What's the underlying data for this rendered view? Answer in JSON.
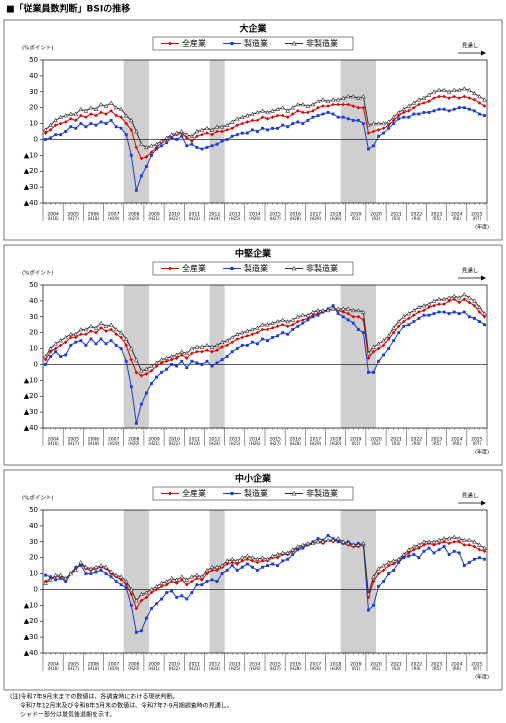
{
  "page_title": "■「従業員数判断」BSIの推移",
  "notes": [
    "(注)令和7年9月末までの数値は、各調査時における現状判断。",
    "令和7年12月末及び令和8年3月末の数値は、令和7年7-9月期調査時の見通し。",
    "シャドー部分は景気後退期を示す。"
  ],
  "chart_data": [
    {
      "type": "line",
      "title": "大企業",
      "y_label": "(%ポイント)",
      "forecast_label": "見通し",
      "x_unit": "(年度)",
      "years": [
        "2004",
        "2005",
        "2006",
        "2007",
        "2008",
        "2009",
        "2010",
        "2011",
        "2012",
        "2013",
        "2014",
        "2015",
        "2016",
        "2017",
        "2018",
        "2019",
        "2020",
        "2021",
        "2022",
        "2023",
        "2024",
        "2025"
      ],
      "eras": [
        "(H16)",
        "(H17)",
        "(H18)",
        "(H19)",
        "(H20)",
        "(H21)",
        "(H22)",
        "(H23)",
        "(H24)",
        "(H25)",
        "(H26)",
        "(H27)",
        "(H28)",
        "(H29)",
        "(H30)",
        "(R1)",
        "(R2)",
        "(R3)",
        "(R4)",
        "(R5)",
        "(R6)",
        "(R7)"
      ],
      "shaded": [
        [
          16,
          20
        ],
        [
          33,
          35
        ],
        [
          59,
          65
        ]
      ],
      "ylim": [
        -40,
        50
      ],
      "yticks": [
        50,
        40,
        30,
        20,
        10,
        0,
        {
          "value": -10,
          "label": "▲10"
        },
        {
          "value": -20,
          "label": "▲20"
        },
        {
          "value": -30,
          "label": "▲30"
        },
        {
          "value": -40,
          "label": "▲40"
        }
      ],
      "grid": false,
      "series": [
        {
          "name": "全産業",
          "color": "#e00000",
          "marker": "diamond",
          "values": [
            4,
            6,
            9,
            10,
            11,
            13,
            12,
            15,
            14,
            16,
            15,
            17,
            16,
            18,
            15,
            14,
            10,
            6,
            -5,
            -12,
            -11,
            -8,
            -5,
            -2,
            0,
            2,
            3,
            4,
            1,
            -1,
            2,
            3,
            4,
            3,
            5,
            5,
            6,
            7,
            9,
            10,
            11,
            12,
            12,
            14,
            13,
            14,
            15,
            15,
            14,
            16,
            18,
            17,
            17,
            18,
            20,
            21,
            21,
            22,
            22,
            22,
            22,
            21,
            20,
            20,
            4,
            5,
            6,
            7,
            9,
            12,
            15,
            17,
            18,
            20,
            22,
            23,
            24,
            26,
            27,
            27,
            26,
            27,
            26,
            27,
            26,
            25,
            23,
            21
          ]
        },
        {
          "name": "製造業",
          "color": "#1a3cd8",
          "marker": "square",
          "values": [
            0,
            1,
            3,
            3,
            5,
            8,
            7,
            10,
            8,
            10,
            9,
            11,
            10,
            12,
            8,
            7,
            3,
            -10,
            -32,
            -23,
            -17,
            -10,
            -6,
            -4,
            -2,
            1,
            0,
            2,
            -4,
            -3,
            -5,
            -6,
            -5,
            -4,
            -3,
            -1,
            0,
            2,
            3,
            4,
            4,
            6,
            5,
            7,
            6,
            7,
            7,
            9,
            8,
            10,
            11,
            10,
            12,
            14,
            15,
            16,
            17,
            16,
            14,
            14,
            13,
            12,
            12,
            10,
            -6,
            -4,
            2,
            4,
            7,
            10,
            13,
            14,
            14,
            16,
            16,
            17,
            17,
            18,
            19,
            19,
            18,
            19,
            20,
            20,
            19,
            18,
            16,
            15
          ]
        },
        {
          "name": "非製造業",
          "color": "#333333",
          "marker": "triangle",
          "values": [
            6,
            9,
            12,
            14,
            15,
            16,
            16,
            19,
            18,
            20,
            19,
            22,
            21,
            23,
            20,
            19,
            15,
            12,
            5,
            -3,
            -5,
            -4,
            -3,
            -1,
            1,
            3,
            4,
            5,
            3,
            2,
            5,
            6,
            7,
            6,
            8,
            8,
            9,
            11,
            13,
            14,
            15,
            16,
            17,
            18,
            17,
            18,
            19,
            20,
            18,
            20,
            22,
            22,
            21,
            22,
            24,
            25,
            24,
            25,
            25,
            26,
            27,
            27,
            26,
            27,
            9,
            10,
            10,
            10,
            11,
            14,
            17,
            19,
            21,
            23,
            25,
            26,
            28,
            30,
            31,
            31,
            30,
            31,
            31,
            32,
            31,
            29,
            27,
            25
          ]
        }
      ]
    },
    {
      "type": "line",
      "title": "中堅企業",
      "y_label": "(%ポイント)",
      "forecast_label": "見通し",
      "x_unit": "(年度)",
      "years": [
        "2004",
        "2005",
        "2006",
        "2007",
        "2008",
        "2009",
        "2010",
        "2011",
        "2012",
        "2013",
        "2014",
        "2015",
        "2016",
        "2017",
        "2018",
        "2019",
        "2020",
        "2021",
        "2022",
        "2023",
        "2024",
        "2025"
      ],
      "eras": [
        "(H16)",
        "(H17)",
        "(H18)",
        "(H19)",
        "(H20)",
        "(H21)",
        "(H22)",
        "(H23)",
        "(H24)",
        "(H25)",
        "(H26)",
        "(H27)",
        "(H28)",
        "(H29)",
        "(H30)",
        "(R1)",
        "(R2)",
        "(R3)",
        "(R4)",
        "(R5)",
        "(R6)",
        "(R7)"
      ],
      "shaded": [
        [
          16,
          20
        ],
        [
          33,
          35
        ],
        [
          59,
          65
        ]
      ],
      "ylim": [
        -40,
        50
      ],
      "yticks": [
        50,
        40,
        30,
        20,
        10,
        0,
        {
          "value": -10,
          "label": "▲10"
        },
        {
          "value": -20,
          "label": "▲20"
        },
        {
          "value": -30,
          "label": "▲30"
        },
        {
          "value": -40,
          "label": "▲40"
        }
      ],
      "grid": false,
      "series": [
        {
          "name": "全産業",
          "color": "#e00000",
          "marker": "diamond",
          "values": [
            3,
            8,
            10,
            12,
            14,
            17,
            17,
            19,
            19,
            21,
            20,
            23,
            21,
            22,
            19,
            17,
            12,
            3,
            -5,
            -7,
            -6,
            -4,
            -1,
            1,
            2,
            3,
            4,
            6,
            4,
            7,
            8,
            8,
            9,
            8,
            9,
            11,
            12,
            14,
            16,
            17,
            18,
            19,
            20,
            22,
            22,
            23,
            24,
            25,
            24,
            25,
            27,
            28,
            29,
            31,
            32,
            33,
            34,
            35,
            34,
            33,
            32,
            30,
            30,
            28,
            4,
            8,
            10,
            12,
            16,
            20,
            24,
            27,
            29,
            31,
            33,
            34,
            36,
            37,
            38,
            38,
            40,
            41,
            39,
            41,
            39,
            37,
            33,
            30
          ]
        },
        {
          "name": "製造業",
          "color": "#1a3cd8",
          "marker": "square",
          "values": [
            0,
            5,
            8,
            5,
            6,
            12,
            14,
            15,
            12,
            16,
            13,
            16,
            13,
            15,
            12,
            10,
            2,
            -14,
            -37,
            -25,
            -18,
            -12,
            -8,
            -5,
            -3,
            0,
            -1,
            2,
            -2,
            2,
            1,
            0,
            2,
            -1,
            1,
            3,
            5,
            8,
            10,
            12,
            12,
            14,
            13,
            16,
            15,
            17,
            18,
            20,
            19,
            22,
            24,
            26,
            28,
            30,
            31,
            33,
            35,
            37,
            32,
            30,
            28,
            26,
            22,
            20,
            -5,
            -5,
            2,
            6,
            10,
            15,
            20,
            24,
            25,
            27,
            29,
            31,
            31,
            32,
            33,
            33,
            32,
            33,
            32,
            33,
            30,
            29,
            27,
            25
          ]
        },
        {
          "name": "非製造業",
          "color": "#333333",
          "marker": "triangle",
          "values": [
            5,
            10,
            13,
            15,
            17,
            19,
            19,
            22,
            22,
            24,
            23,
            26,
            24,
            25,
            22,
            20,
            16,
            10,
            3,
            -4,
            -3,
            -1,
            1,
            3,
            4,
            5,
            6,
            8,
            7,
            10,
            11,
            11,
            12,
            11,
            12,
            14,
            15,
            17,
            19,
            20,
            21,
            22,
            23,
            25,
            25,
            26,
            27,
            28,
            27,
            28,
            30,
            31,
            31,
            33,
            34,
            34,
            34,
            35,
            35,
            35,
            35,
            34,
            34,
            33,
            7,
            11,
            13,
            15,
            18,
            23,
            27,
            30,
            32,
            34,
            36,
            37,
            38,
            40,
            41,
            41,
            42,
            43,
            42,
            44,
            42,
            40,
            36,
            32
          ]
        }
      ]
    },
    {
      "type": "line",
      "title": "中小企業",
      "y_label": "(%ポイント)",
      "forecast_label": "見通し",
      "x_unit": "(年度)",
      "years": [
        "2004",
        "2005",
        "2006",
        "2007",
        "2008",
        "2009",
        "2010",
        "2011",
        "2012",
        "2013",
        "2014",
        "2015",
        "2016",
        "2017",
        "2018",
        "2019",
        "2020",
        "2021",
        "2022",
        "2023",
        "2024",
        "2025"
      ],
      "eras": [
        "(H16)",
        "(H17)",
        "(H18)",
        "(H19)",
        "(H20)",
        "(H21)",
        "(H22)",
        "(H23)",
        "(H24)",
        "(H25)",
        "(H26)",
        "(H27)",
        "(H28)",
        "(H29)",
        "(H30)",
        "(R1)",
        "(R2)",
        "(R3)",
        "(R4)",
        "(R5)",
        "(R6)",
        "(R7)"
      ],
      "shaded": [
        [
          16,
          20
        ],
        [
          33,
          35
        ],
        [
          59,
          65
        ]
      ],
      "ylim": [
        -40,
        50
      ],
      "yticks": [
        50,
        40,
        30,
        20,
        10,
        0,
        {
          "value": -10,
          "label": "▲10"
        },
        {
          "value": -20,
          "label": "▲20"
        },
        {
          "value": -30,
          "label": "▲30"
        },
        {
          "value": -40,
          "label": "▲40"
        }
      ],
      "grid": false,
      "series": [
        {
          "name": "全産業",
          "color": "#e00000",
          "marker": "diamond",
          "values": [
            5,
            7,
            8,
            8,
            6,
            10,
            13,
            16,
            13,
            12,
            13,
            14,
            13,
            10,
            8,
            6,
            3,
            -3,
            -12,
            -7,
            -5,
            -2,
            0,
            2,
            3,
            5,
            4,
            6,
            3,
            5,
            7,
            6,
            10,
            12,
            12,
            14,
            16,
            17,
            16,
            18,
            19,
            18,
            17,
            18,
            18,
            20,
            20,
            22,
            22,
            24,
            26,
            27,
            28,
            29,
            30,
            29,
            31,
            30,
            31,
            29,
            28,
            27,
            27,
            28,
            -5,
            5,
            10,
            12,
            15,
            16,
            18,
            21,
            23,
            25,
            26,
            28,
            29,
            28,
            29,
            30,
            29,
            30,
            30,
            28,
            28,
            27,
            25,
            24
          ]
        },
        {
          "name": "製造業",
          "color": "#1a3cd8",
          "marker": "square",
          "values": [
            9,
            8,
            6,
            7,
            5,
            10,
            14,
            15,
            10,
            10,
            11,
            12,
            10,
            8,
            5,
            3,
            1,
            -10,
            -27,
            -26,
            -18,
            -12,
            -9,
            -6,
            -2,
            -1,
            -5,
            -4,
            -6,
            -2,
            3,
            3,
            5,
            6,
            5,
            10,
            12,
            15,
            12,
            14,
            16,
            14,
            12,
            14,
            15,
            16,
            15,
            18,
            19,
            22,
            25,
            26,
            28,
            30,
            32,
            31,
            34,
            32,
            30,
            29,
            30,
            28,
            29,
            28,
            -13,
            -10,
            2,
            5,
            10,
            12,
            17,
            20,
            21,
            22,
            20,
            24,
            26,
            23,
            25,
            27,
            22,
            24,
            23,
            15,
            17,
            19,
            20,
            19
          ]
        },
        {
          "name": "非製造業",
          "color": "#333333",
          "marker": "triangle",
          "values": [
            4,
            6,
            9,
            9,
            7,
            10,
            12,
            17,
            14,
            13,
            14,
            15,
            14,
            11,
            9,
            8,
            5,
            0,
            -7,
            -3,
            -2,
            0,
            2,
            4,
            5,
            7,
            6,
            8,
            6,
            8,
            9,
            8,
            12,
            14,
            14,
            15,
            18,
            19,
            18,
            20,
            21,
            20,
            19,
            20,
            19,
            21,
            22,
            23,
            23,
            25,
            27,
            28,
            29,
            29,
            30,
            30,
            31,
            31,
            32,
            30,
            29,
            28,
            28,
            29,
            -3,
            8,
            13,
            15,
            17,
            18,
            19,
            22,
            25,
            27,
            28,
            30,
            30,
            30,
            31,
            32,
            32,
            33,
            32,
            31,
            31,
            30,
            28,
            26
          ]
        }
      ]
    }
  ]
}
